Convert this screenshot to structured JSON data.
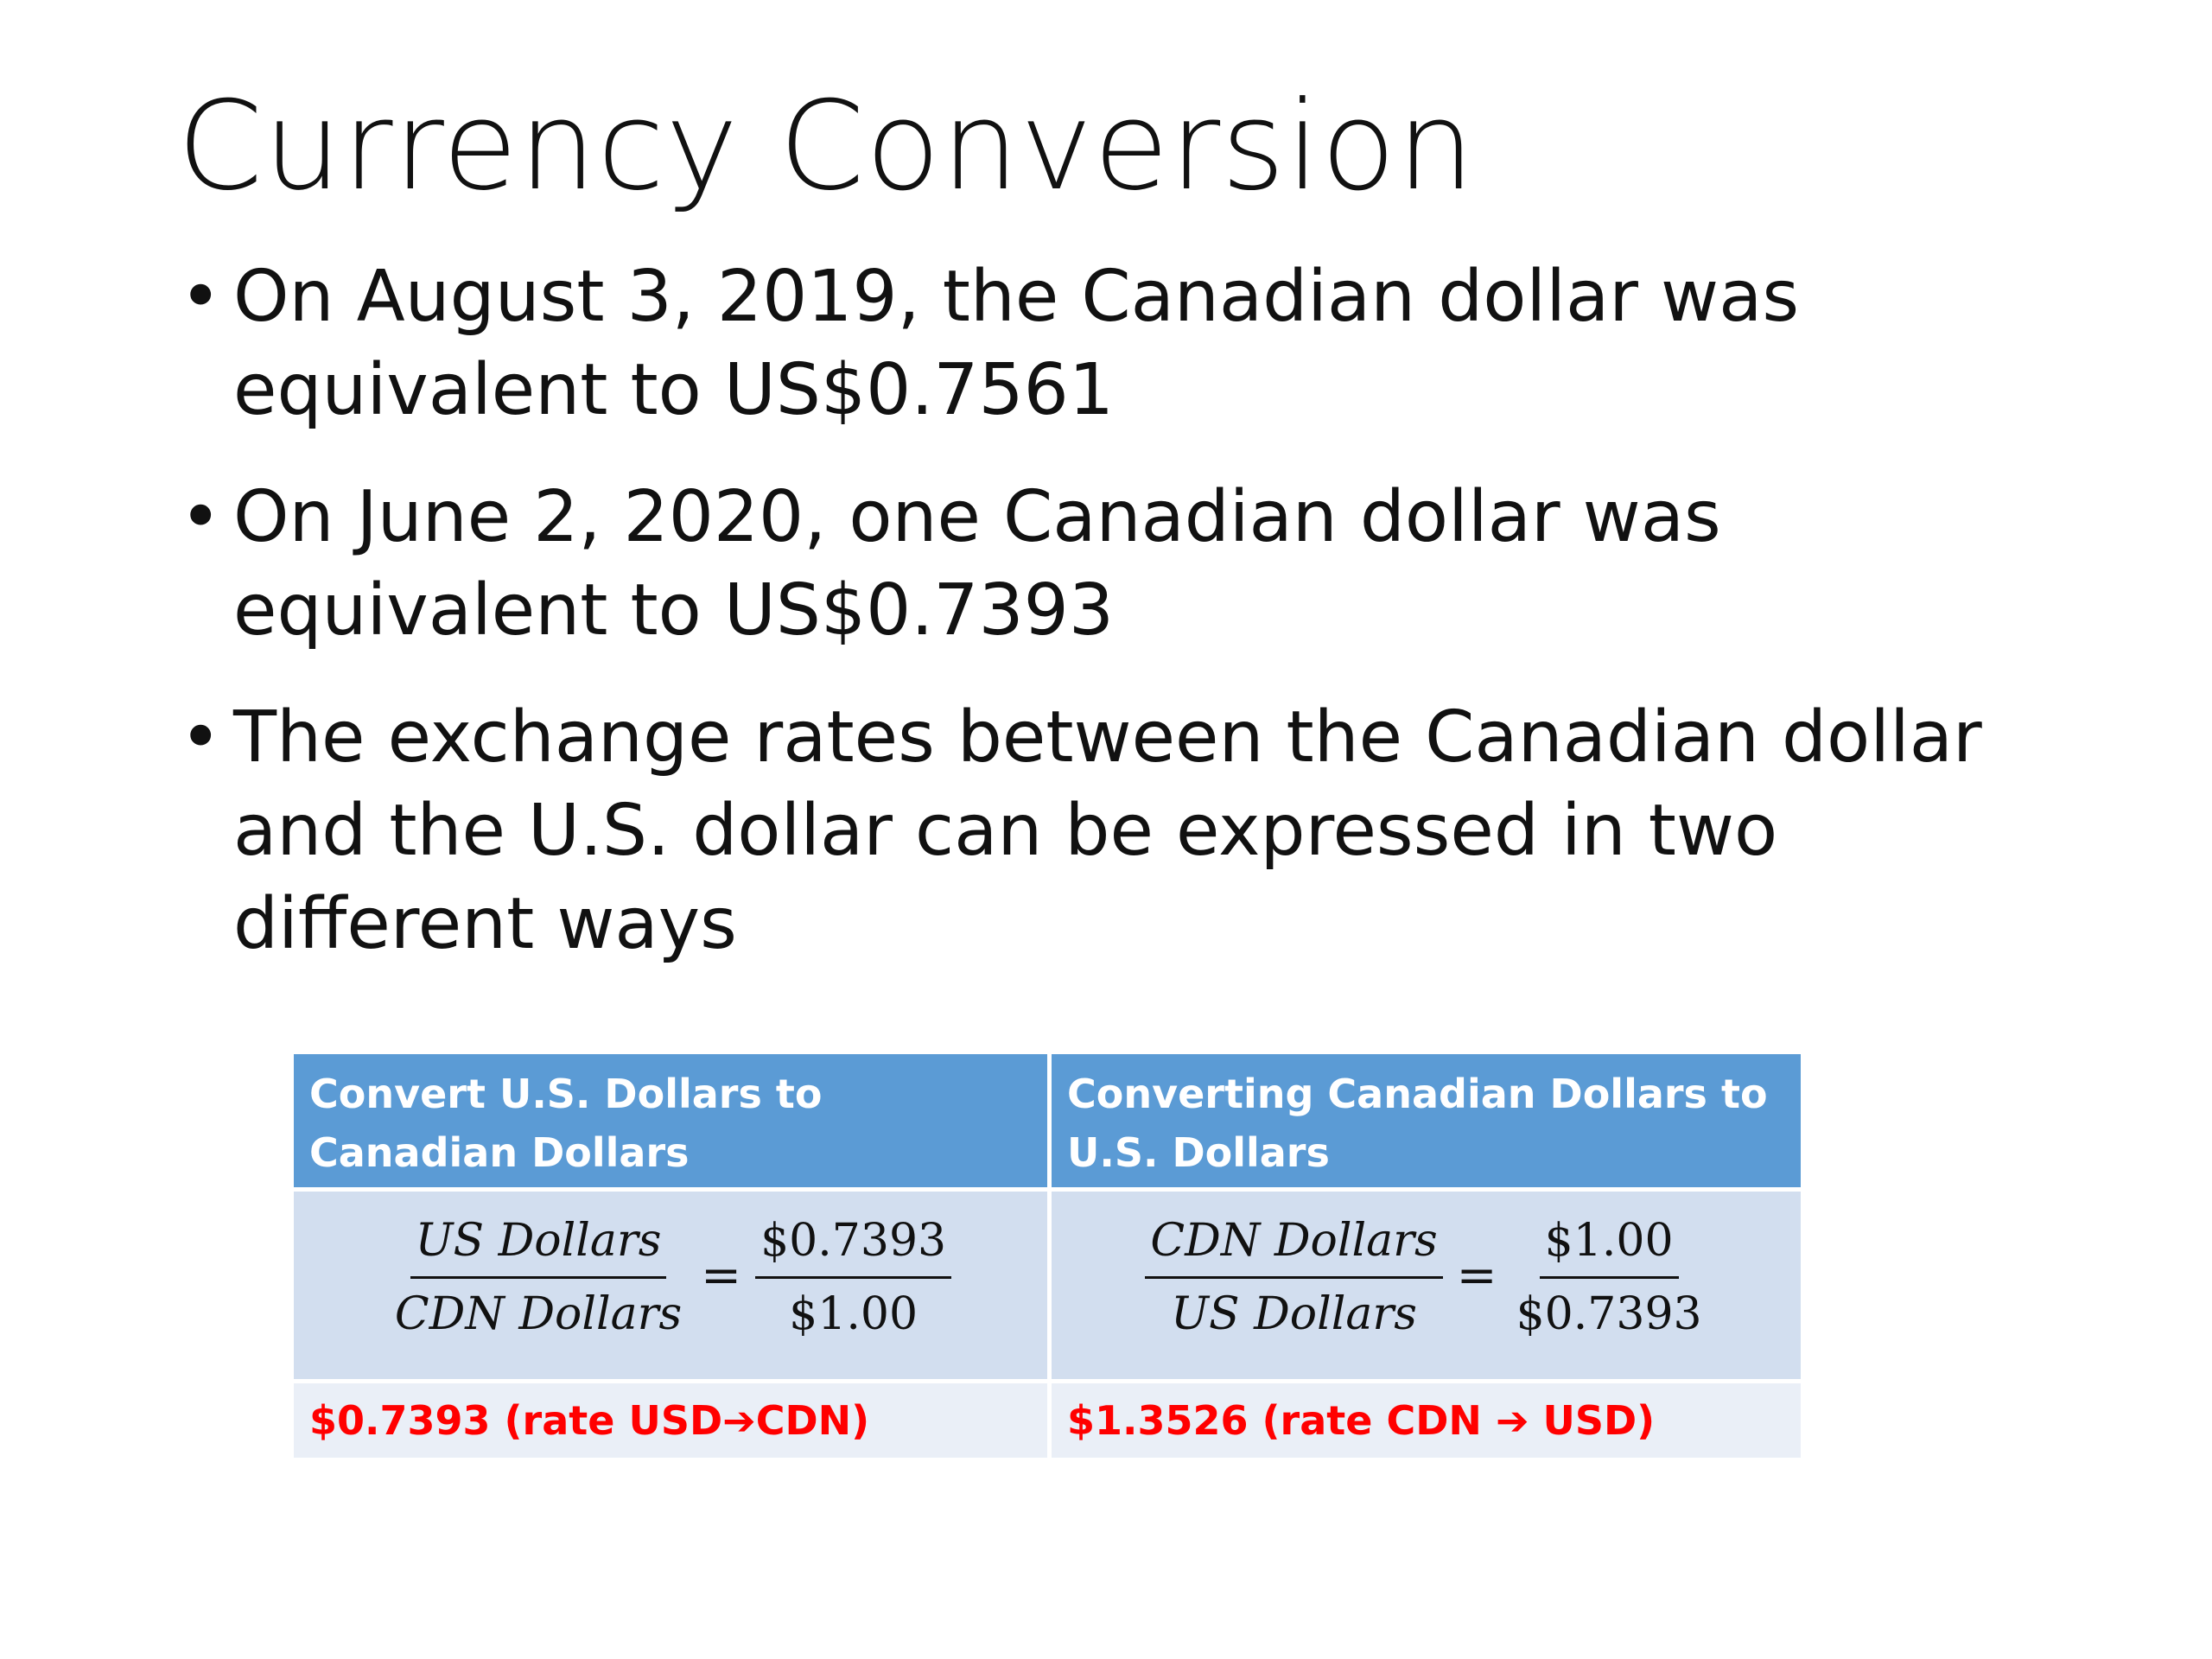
{
  "slide": {
    "title": "Currency Conversion",
    "bullets": [
      {
        "lines": [
          "On August 3, 2019, the Canadian dollar was",
          "equivalent to US$0.7561"
        ]
      },
      {
        "lines": [
          "On June 2, 2020, one Canadian dollar was",
          "equivalent to US$0.7393"
        ]
      },
      {
        "lines": [
          "The exchange rates between the Canadian dollar",
          "and the U.S. dollar can be expressed in two",
          "different ways"
        ]
      }
    ],
    "bullet_glyph": "•"
  },
  "table": {
    "header_color": "#5b9bd5",
    "rate_color": "#ff0000",
    "headers": [
      "Convert U.S. Dollars to Canadian Dollars",
      "Converting Canadian Dollars to U.S. Dollars"
    ],
    "formulas": [
      {
        "left_num": "US Dollars",
        "left_den": "CDN Dollars",
        "eq": "=",
        "right_num": "$0.7393",
        "right_den": "$1.00"
      },
      {
        "left_num": "CDN Dollars",
        "left_den": "US Dollars",
        "eq": "=",
        "right_num": "$1.00",
        "right_den": "$0.7393"
      }
    ],
    "rates": [
      "$0.7393 (rate USD➔CDN)",
      "$1.3526 (rate CDN ➔ USD)"
    ]
  }
}
